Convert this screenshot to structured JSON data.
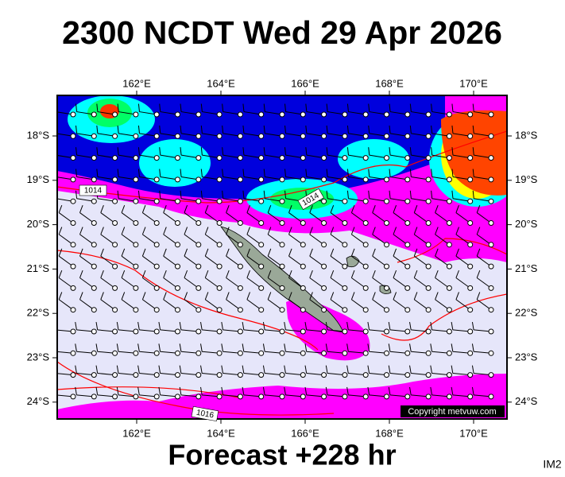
{
  "header": {
    "title": "2300 NCDT Wed 29 Apr 2026"
  },
  "map": {
    "lon_labels": [
      "162°E",
      "164°E",
      "166°E",
      "168°E",
      "170°E"
    ],
    "lat_labels": [
      "18°S",
      "19°S",
      "20°S",
      "21°S",
      "22°S",
      "23°S",
      "24°S"
    ],
    "isobar_labels": [
      "1014",
      "1014",
      "1016"
    ],
    "copyright": "Copyright metvuw.com"
  },
  "footer": {
    "forecast": "Forecast +228 hr",
    "image_id": "IM2"
  }
}
